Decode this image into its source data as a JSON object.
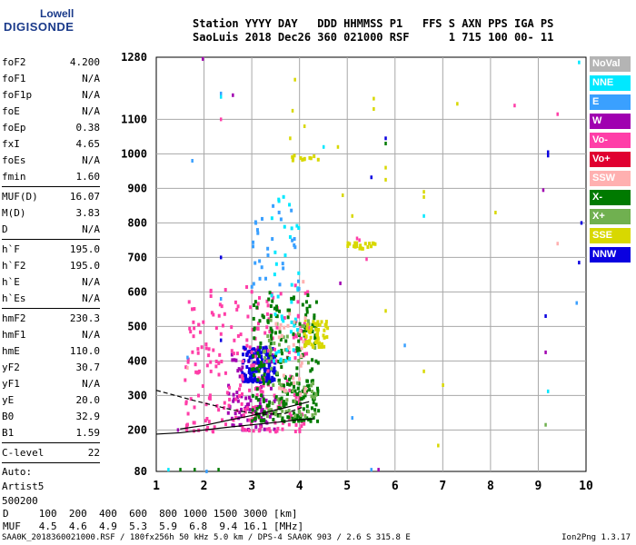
{
  "logo": {
    "line1": "Lowell",
    "line2": "DIGISONDE"
  },
  "header": {
    "line1": "Station YYYY DAY   DDD HHMMSS P1   FFS S AXN PPS IGA PS",
    "line2": "SaoLuis 2018 Dec26 360 021000 RSF      1 715 100 00- 11"
  },
  "params": {
    "g1": [
      {
        "name": "foF2",
        "value": "4.200"
      },
      {
        "name": "foF1",
        "value": "N/A"
      },
      {
        "name": "foF1p",
        "value": "N/A"
      },
      {
        "name": "foE",
        "value": "N/A"
      },
      {
        "name": "foEp",
        "value": "0.38"
      },
      {
        "name": "fxI",
        "value": "4.65"
      },
      {
        "name": "foEs",
        "value": "N/A"
      },
      {
        "name": "fmin",
        "value": "1.60"
      }
    ],
    "g2": [
      {
        "name": "MUF(D)",
        "value": "16.07"
      },
      {
        "name": "M(D)",
        "value": "3.83"
      },
      {
        "name": "D",
        "value": "N/A"
      }
    ],
    "g3": [
      {
        "name": "h`F",
        "value": "195.0"
      },
      {
        "name": "h`F2",
        "value": "195.0"
      },
      {
        "name": "h`E",
        "value": "N/A"
      },
      {
        "name": "h`Es",
        "value": "N/A"
      }
    ],
    "g4": [
      {
        "name": "hmF2",
        "value": "230.3"
      },
      {
        "name": "hmF1",
        "value": "N/A"
      },
      {
        "name": "hmE",
        "value": "110.0"
      },
      {
        "name": "yF2",
        "value": "30.7"
      },
      {
        "name": "yF1",
        "value": "N/A"
      },
      {
        "name": "yE",
        "value": "20.0"
      },
      {
        "name": "B0",
        "value": "32.9"
      },
      {
        "name": "B1",
        "value": "1.59"
      }
    ],
    "g5": [
      {
        "name": "C-level",
        "value": "22"
      }
    ],
    "auto": [
      "Auto:",
      "Artist5",
      "500200"
    ]
  },
  "table": {
    "line1": "D     100  200  400  600  800 1000 1500 3000 [km]",
    "line2": "MUF   4.5  4.6  4.9  5.3  5.9  6.8  9.4 16.1 [MHz]"
  },
  "footer": {
    "left": "SAA0K_2018360021000.RSF / 180fx256h 50 kHz 5.0 km / DPS-4 SAA0K 903 / 2.6 S 315.8 E",
    "right": "Ion2Png 1.3.17"
  },
  "legend": [
    {
      "label": "NoVal",
      "bg": "#b4b4b4",
      "fg": "#ffffff"
    },
    {
      "label": "NNE",
      "bg": "#00e8ff",
      "fg": "#ffffff"
    },
    {
      "label": "E",
      "bg": "#3aa0ff",
      "fg": "#ffffff"
    },
    {
      "label": "W",
      "bg": "#a000b0",
      "fg": "#ffffff"
    },
    {
      "label": "Vo-",
      "bg": "#ff3ea8",
      "fg": "#ffffff"
    },
    {
      "label": "Vo+",
      "bg": "#e00030",
      "fg": "#ffffff"
    },
    {
      "label": "SSW",
      "bg": "#ffb0b0",
      "fg": "#ffffff"
    },
    {
      "label": "X-",
      "bg": "#007a00",
      "fg": "#ffffff"
    },
    {
      "label": "X+",
      "bg": "#70b050",
      "fg": "#ffffff"
    },
    {
      "label": "SSE",
      "bg": "#d8d800",
      "fg": "#ffffff"
    },
    {
      "label": "NNW",
      "bg": "#0a00e0",
      "fg": "#ffffff"
    }
  ],
  "chart_data": {
    "type": "scatter",
    "title": "Station SaoLuis 2018 Dec26 360 021000",
    "xlabel": "",
    "ylabel": "",
    "xlim": [
      1,
      10
    ],
    "ylim": [
      80,
      1280
    ],
    "xticks": [
      1,
      2,
      3,
      4,
      5,
      6,
      7,
      8,
      9,
      10
    ],
    "yticks": [
      80,
      200,
      300,
      400,
      500,
      600,
      700,
      800,
      900,
      1000,
      1100,
      1280
    ],
    "grid": true,
    "profile_dashed": {
      "x": [
        1.0,
        1.8,
        2.6,
        3.2,
        3.7,
        4.05
      ],
      "y": [
        315,
        285,
        258,
        245,
        248,
        265
      ]
    },
    "trace_upper": {
      "x": [
        1.5,
        2.0,
        2.5,
        3.0,
        3.5,
        4.0,
        4.2
      ],
      "y": [
        203,
        213,
        228,
        242,
        258,
        275,
        282
      ]
    },
    "trace_lower": {
      "x": [
        1.0,
        1.5,
        2.0,
        2.5,
        3.0,
        3.5,
        4.0,
        4.3
      ],
      "y": [
        188,
        192,
        200,
        208,
        215,
        222,
        230,
        232
      ]
    },
    "echo_clusters": [
      {
        "name": "W",
        "color": "#a000b0",
        "x": [
          2.5,
          3.5
        ],
        "y": [
          200,
          440
        ],
        "n": 110
      },
      {
        "name": "NNW",
        "color": "#0a00e0",
        "x": [
          2.8,
          3.5
        ],
        "y": [
          340,
          440
        ],
        "n": 140
      },
      {
        "name": "Vo-",
        "color": "#ff3ea8",
        "x": [
          1.6,
          4.2
        ],
        "y": [
          195,
          620
        ],
        "n": 260
      },
      {
        "name": "X-",
        "color": "#007a00",
        "x": [
          3.0,
          4.4
        ],
        "y": [
          225,
          600
        ],
        "n": 240
      },
      {
        "name": "X+",
        "color": "#70b050",
        "x": [
          3.2,
          4.4
        ],
        "y": [
          240,
          520
        ],
        "n": 70
      },
      {
        "name": "NNE",
        "color": "#00e8ff",
        "x": [
          3.4,
          4.0
        ],
        "y": [
          400,
          900
        ],
        "n": 40
      },
      {
        "name": "SSE",
        "color": "#d8d800",
        "x": [
          4.1,
          4.6
        ],
        "y": [
          440,
          520
        ],
        "n": 60
      },
      {
        "name": "SSE",
        "color": "#d8d800",
        "x": [
          5.0,
          5.6
        ],
        "y": [
          725,
          745
        ],
        "n": 22
      },
      {
        "name": "SSE",
        "color": "#d8d800",
        "x": [
          3.8,
          4.4
        ],
        "y": [
          980,
          1000
        ],
        "n": 12
      },
      {
        "name": "E",
        "color": "#3aa0ff",
        "x": [
          3.0,
          4.0
        ],
        "y": [
          600,
          850
        ],
        "n": 30
      },
      {
        "name": "SSW",
        "color": "#ffb0b0",
        "x": [
          3.5,
          4.2
        ],
        "y": [
          300,
          700
        ],
        "n": 30
      }
    ],
    "stray_points": [
      {
        "x": 1.97,
        "y": 1275,
        "c": "#a000b0"
      },
      {
        "x": 2.35,
        "y": 1175,
        "c": "#3aa0ff"
      },
      {
        "x": 2.35,
        "y": 1165,
        "c": "#00e8ff"
      },
      {
        "x": 2.35,
        "y": 1100,
        "c": "#ff3ea8"
      },
      {
        "x": 1.75,
        "y": 980,
        "c": "#3aa0ff"
      },
      {
        "x": 2.35,
        "y": 700,
        "c": "#0a00e0"
      },
      {
        "x": 2.35,
        "y": 580,
        "c": "#3aa0ff"
      },
      {
        "x": 2.35,
        "y": 460,
        "c": "#0a00e0"
      },
      {
        "x": 1.65,
        "y": 410,
        "c": "#3aa0ff"
      },
      {
        "x": 1.65,
        "y": 380,
        "c": "#ffb0b0"
      },
      {
        "x": 2.6,
        "y": 1170,
        "c": "#a000b0"
      },
      {
        "x": 5.55,
        "y": 1160,
        "c": "#d8d800"
      },
      {
        "x": 5.55,
        "y": 1130,
        "c": "#d8d800"
      },
      {
        "x": 5.8,
        "y": 1045,
        "c": "#0a00e0"
      },
      {
        "x": 5.8,
        "y": 1030,
        "c": "#007a00"
      },
      {
        "x": 5.8,
        "y": 960,
        "c": "#d8d800"
      },
      {
        "x": 5.8,
        "y": 925,
        "c": "#d8d800"
      },
      {
        "x": 5.5,
        "y": 932,
        "c": "#0a00e0"
      },
      {
        "x": 4.8,
        "y": 1020,
        "c": "#d8d800"
      },
      {
        "x": 5.8,
        "y": 545,
        "c": "#d8d800"
      },
      {
        "x": 6.2,
        "y": 445,
        "c": "#3aa0ff"
      },
      {
        "x": 6.6,
        "y": 890,
        "c": "#d8d800"
      },
      {
        "x": 6.6,
        "y": 875,
        "c": "#d8d800"
      },
      {
        "x": 6.6,
        "y": 820,
        "c": "#00e8ff"
      },
      {
        "x": 6.6,
        "y": 370,
        "c": "#d8d800"
      },
      {
        "x": 6.9,
        "y": 155,
        "c": "#d8d800"
      },
      {
        "x": 7.0,
        "y": 330,
        "c": "#d8d800"
      },
      {
        "x": 7.3,
        "y": 1145,
        "c": "#d8d800"
      },
      {
        "x": 8.5,
        "y": 1140,
        "c": "#ff3ea8"
      },
      {
        "x": 9.4,
        "y": 1115,
        "c": "#ff3ea8"
      },
      {
        "x": 9.2,
        "y": 1005,
        "c": "#0a00e0"
      },
      {
        "x": 9.2,
        "y": 995,
        "c": "#0a00e0"
      },
      {
        "x": 9.1,
        "y": 895,
        "c": "#a000b0"
      },
      {
        "x": 8.1,
        "y": 830,
        "c": "#d8d800"
      },
      {
        "x": 9.4,
        "y": 740,
        "c": "#ffb0b0"
      },
      {
        "x": 9.85,
        "y": 685,
        "c": "#0a00e0"
      },
      {
        "x": 9.15,
        "y": 530,
        "c": "#0a00e0"
      },
      {
        "x": 9.15,
        "y": 425,
        "c": "#a000b0"
      },
      {
        "x": 9.2,
        "y": 312,
        "c": "#00e8ff"
      },
      {
        "x": 9.15,
        "y": 215,
        "c": "#70b050"
      },
      {
        "x": 9.85,
        "y": 1265,
        "c": "#00e8ff"
      },
      {
        "x": 9.9,
        "y": 800,
        "c": "#0a00e0"
      },
      {
        "x": 9.8,
        "y": 568,
        "c": "#3aa0ff"
      },
      {
        "x": 5.1,
        "y": 235,
        "c": "#3aa0ff"
      },
      {
        "x": 5.1,
        "y": 820,
        "c": "#d8d800"
      },
      {
        "x": 5.4,
        "y": 695,
        "c": "#ff3ea8"
      },
      {
        "x": 5.2,
        "y": 755,
        "c": "#ff3ea8"
      },
      {
        "x": 4.85,
        "y": 625,
        "c": "#a000b0"
      },
      {
        "x": 4.5,
        "y": 1020,
        "c": "#00e8ff"
      },
      {
        "x": 3.9,
        "y": 1215,
        "c": "#d8d800"
      },
      {
        "x": 3.85,
        "y": 1125,
        "c": "#d8d800"
      },
      {
        "x": 4.1,
        "y": 1080,
        "c": "#d8d800"
      },
      {
        "x": 3.8,
        "y": 1045,
        "c": "#d8d800"
      },
      {
        "x": 4.9,
        "y": 880,
        "c": "#d8d800"
      },
      {
        "x": 5.25,
        "y": 750,
        "c": "#ff3ea8"
      },
      {
        "x": 1.45,
        "y": 200,
        "c": "#a000b0"
      },
      {
        "x": 1.25,
        "y": 85,
        "c": "#00e8ff"
      },
      {
        "x": 1.5,
        "y": 85,
        "c": "#007a00"
      },
      {
        "x": 1.8,
        "y": 85,
        "c": "#007a00"
      },
      {
        "x": 2.3,
        "y": 85,
        "c": "#007a00"
      },
      {
        "x": 5.5,
        "y": 85,
        "c": "#3aa0ff"
      },
      {
        "x": 5.65,
        "y": 85,
        "c": "#a000b0"
      },
      {
        "x": 2.05,
        "y": 80,
        "c": "#3aa0ff"
      }
    ]
  }
}
